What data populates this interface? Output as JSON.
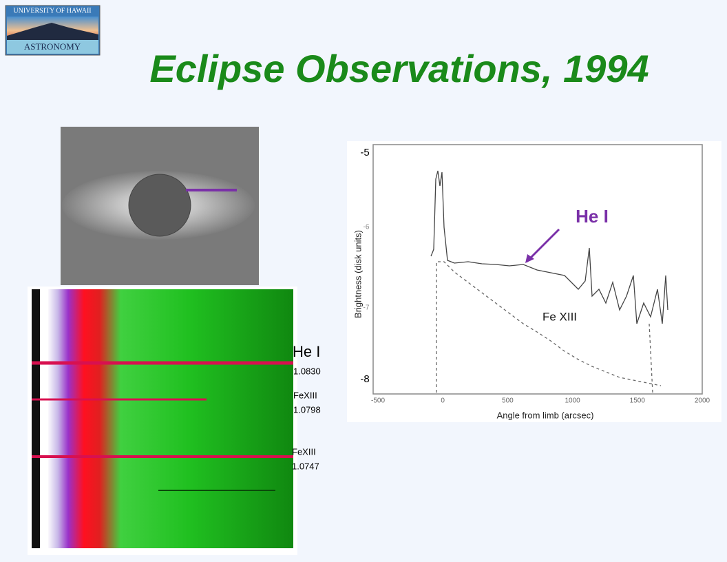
{
  "logo": {
    "line1": "UNIVERSITY OF HAWAII",
    "line2": "ASTRONOMY"
  },
  "title": "Eclipse Observations, 1994",
  "spectrum_labels": {
    "he_name": "He I",
    "he_wavelength": "1.0830",
    "fe1_name": "FeXIII",
    "fe1_wavelength": "1.0798",
    "fe2_name": "FeXIII",
    "fe2_wavelength": "1.0747"
  },
  "plot": {
    "x_tick_labels": [
      "-500",
      "0",
      "500",
      "1000",
      "1500",
      "2000"
    ],
    "y_tick_labels": [
      "-5",
      "-6",
      "-7",
      "-8"
    ],
    "x_axis_label": "Angle from limb (arcsec)",
    "y_axis_label": "Brightness (disk units)",
    "annotation_he": "He I",
    "annotation_fe": "Fe XIII"
  }
}
